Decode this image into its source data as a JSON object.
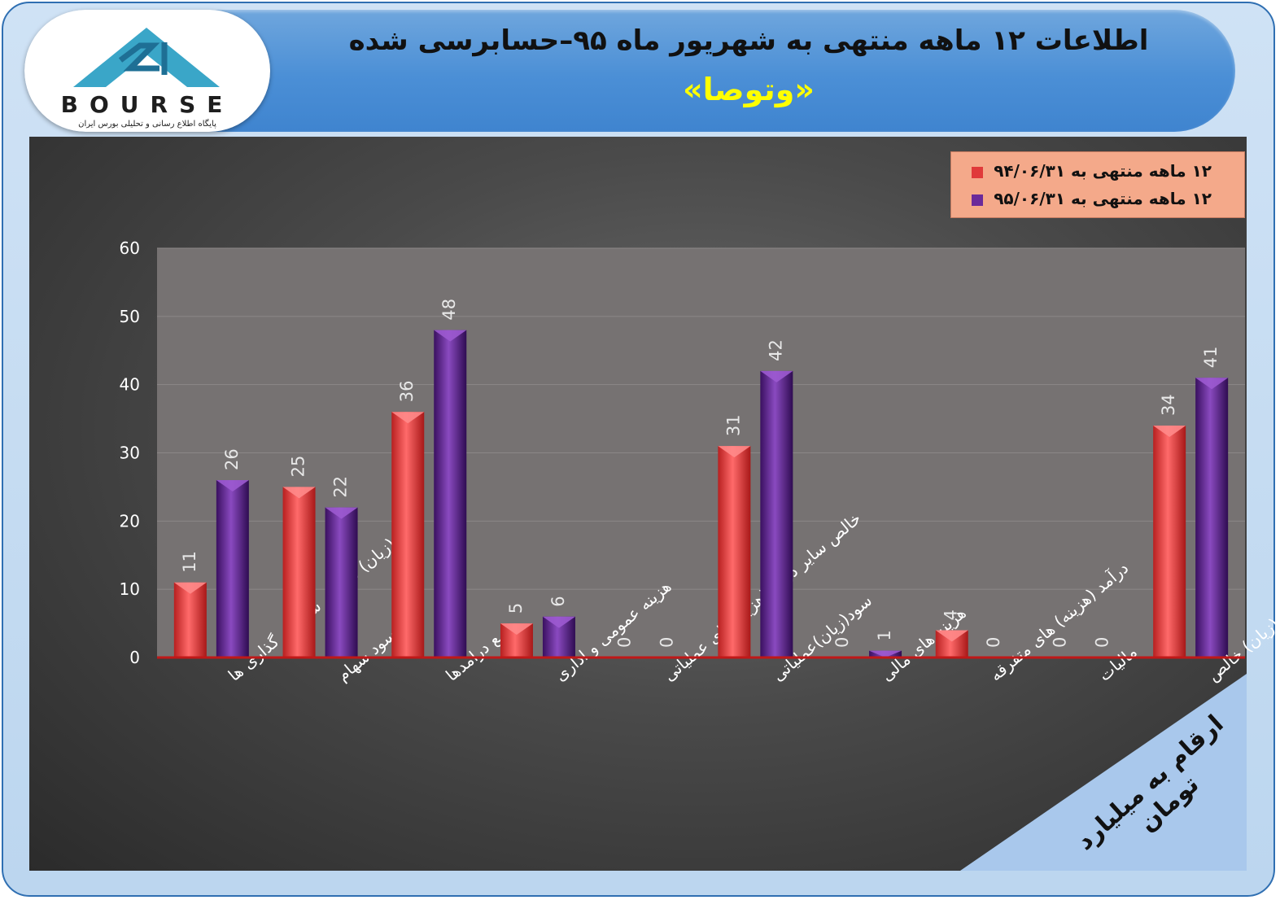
{
  "header": {
    "title": "اطلاعات ۱۲ ماهه منتهی به شهریور ماه ۹۵–حسابرسی شده",
    "subtitle": "«وتوصا»"
  },
  "logo": {
    "text": "BOURSE",
    "tagline": "پایگاه اطلاع رسانی و تحلیلی بورس ایران"
  },
  "unit_note": "ارقام به میلیارد تومان",
  "colors": {
    "series1": "#f04848",
    "series2": "#6a2a9a",
    "legend_bg": "#f4a98a",
    "plot_bg": "#767272"
  },
  "chart_data": {
    "type": "bar",
    "title": "اطلاعات ۱۲ ماهه منتهی به شهریور ماه ۹۵–حسابرسی شده",
    "ylim": [
      0,
      60
    ],
    "yticks": [
      0,
      10,
      20,
      30,
      40,
      50,
      60
    ],
    "grid": true,
    "legend_position": "top-right",
    "categories": [
      "سود (زیان) فروش سرمایه گذاری ها",
      "سود سهام",
      "جمع درامدها",
      "هزینه عمومی و اداری",
      "خالص سایر درامد(هزینه)های عملیاتی",
      "سود(زیان)عملیاتی",
      "هزینه های مالی",
      "درآمد (هزینه) های متفرقه",
      "مالیات",
      "سود(زیان) خالص"
    ],
    "series": [
      {
        "name": "۱۲ ماهه منتهی به ۹۴/۰۶/۳۱",
        "values": [
          11,
          25,
          36,
          5,
          0,
          31,
          0,
          4,
          0,
          34
        ]
      },
      {
        "name": "۱۲ ماهه منتهی به ۹۵/۰۶/۳۱",
        "values": [
          26,
          22,
          48,
          6,
          0,
          42,
          1,
          0,
          0,
          41
        ]
      }
    ]
  }
}
